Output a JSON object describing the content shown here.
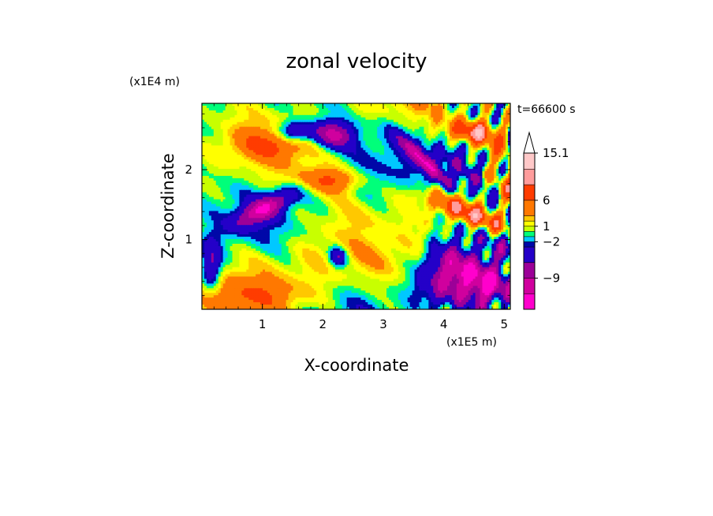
{
  "chart_data": {
    "type": "heatmap",
    "title": "zonal velocity",
    "xlabel": "X-coordinate",
    "ylabel": "Z-coordinate",
    "x_unit": "(x1E5 m)",
    "y_unit": "(x1E4 m)",
    "time_label": "t=66600 s",
    "xlim": [
      0,
      5.1
    ],
    "ylim": [
      0,
      2.95
    ],
    "x_ticks": [
      1,
      2,
      3,
      4,
      5
    ],
    "x_tick_labels": [
      "1",
      "2",
      "3",
      "4",
      "5"
    ],
    "y_ticks": [
      1,
      2
    ],
    "y_tick_labels": [
      "1",
      "2"
    ],
    "colorbar": {
      "levels": [
        -15,
        -12,
        -9,
        -6,
        -3,
        -2,
        -1,
        0,
        1,
        2,
        3,
        6,
        9,
        12,
        15.1
      ],
      "colors": [
        "#ff00cc",
        "#d0009e",
        "#9c0098",
        "#2400c8",
        "#0008a8",
        "#00c8ff",
        "#00ff7a",
        "#c8ff00",
        "#ffff00",
        "#ffc800",
        "#ff7800",
        "#ff3c00",
        "#ff9c9c",
        "#ffc8c8"
      ],
      "labels": [
        {
          "value": 15.1,
          "text": "15.1"
        },
        {
          "value": 6,
          "text": "6"
        },
        {
          "value": 1,
          "text": "1"
        },
        {
          "value": -2,
          "text": "−2"
        },
        {
          "value": -9,
          "text": "−9"
        }
      ],
      "extend": "max"
    },
    "grid": false,
    "field_features": [
      {
        "x": 1.05,
        "z": 1.45,
        "sx": 0.35,
        "sz": 0.12,
        "amp": -10,
        "tilt": 0.4
      },
      {
        "x": 2.15,
        "z": 2.5,
        "sx": 0.25,
        "sz": 0.14,
        "amp": -10,
        "tilt": 0.0
      },
      {
        "x": 1.55,
        "z": 2.55,
        "sx": 0.2,
        "sz": 0.1,
        "amp": -8,
        "tilt": 0.0
      },
      {
        "x": 3.7,
        "z": 2.1,
        "sx": 0.35,
        "sz": 0.1,
        "amp": -10,
        "tilt": -0.8
      },
      {
        "x": 4.35,
        "z": 2.0,
        "sx": 0.4,
        "sz": 0.1,
        "amp": -9,
        "tilt": -0.6
      },
      {
        "x": 4.1,
        "z": 0.45,
        "sx": 0.35,
        "sz": 0.3,
        "amp": -11,
        "tilt": 0.0
      },
      {
        "x": 4.75,
        "z": 0.3,
        "sx": 0.25,
        "sz": 0.25,
        "amp": -10,
        "tilt": 0.0
      },
      {
        "x": 0.15,
        "z": 0.6,
        "sx": 0.12,
        "sz": 0.25,
        "amp": -8,
        "tilt": 0.0
      },
      {
        "x": 2.25,
        "z": 0.75,
        "sx": 0.1,
        "sz": 0.1,
        "amp": -7,
        "tilt": 0.0
      },
      {
        "x": 4.55,
        "z": 2.55,
        "sx": 0.35,
        "sz": 0.12,
        "amp": 8,
        "tilt": 0.0
      },
      {
        "x": 4.3,
        "z": 1.4,
        "sx": 0.5,
        "sz": 0.12,
        "amp": 8,
        "tilt": -0.3
      },
      {
        "x": 2.1,
        "z": 1.85,
        "sx": 0.35,
        "sz": 0.12,
        "amp": 6,
        "tilt": 0.0
      },
      {
        "x": 1.1,
        "z": 2.35,
        "sx": 0.45,
        "sz": 0.14,
        "amp": 4,
        "tilt": 0.0
      },
      {
        "x": 1.9,
        "z": 0.5,
        "sx": 0.8,
        "sz": 0.4,
        "amp": 1.5,
        "tilt": 0.0
      },
      {
        "x": 0.9,
        "z": 0.2,
        "sx": 0.6,
        "sz": 0.15,
        "amp": 3,
        "tilt": 0.0
      },
      {
        "x": 2.9,
        "z": 1.05,
        "sx": 0.4,
        "sz": 0.2,
        "amp": -1.5,
        "tilt": 0.0
      }
    ]
  }
}
